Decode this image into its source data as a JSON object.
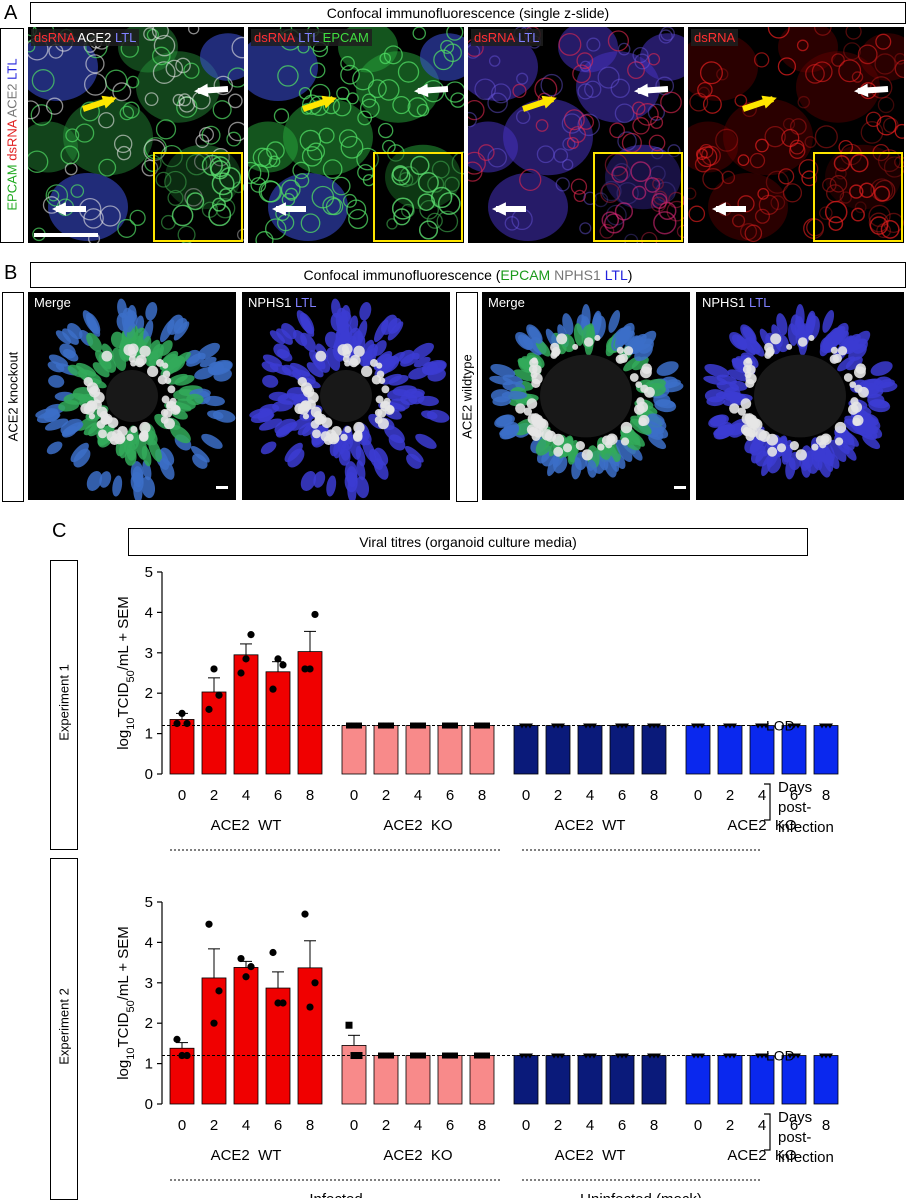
{
  "panel_a": {
    "letter": "A",
    "title": "Confocal immunofluorescence (single z-slide)",
    "side_label": [
      {
        "text": "EPCAM",
        "color": "#22aa22"
      },
      {
        "text": " dsRNA",
        "color": "#e02020"
      },
      {
        "text": " ACE2",
        "color": "#777777"
      },
      {
        "text": " LTL",
        "color": "#2222dd"
      }
    ],
    "tiles": [
      {
        "labels": [
          {
            "text": "dsRNA",
            "color": "#ff3030"
          },
          {
            "text": " ACE2",
            "color": "#ffffff"
          },
          {
            "text": " LTL",
            "color": "#8080ff"
          }
        ]
      },
      {
        "labels": [
          {
            "text": "dsRNA",
            "color": "#ff3030"
          },
          {
            "text": " LTL",
            "color": "#8080ff"
          },
          {
            "text": " EPCAM",
            "color": "#40dd40"
          }
        ]
      },
      {
        "labels": [
          {
            "text": "dsRNA",
            "color": "#ff3030"
          },
          {
            "text": " LTL",
            "color": "#8080ff"
          }
        ]
      },
      {
        "labels": [
          {
            "text": "dsRNA",
            "color": "#ff3030"
          }
        ]
      }
    ]
  },
  "panel_b": {
    "letter": "B",
    "title_parts": [
      {
        "text": "Confocal immunofluorescence (",
        "color": "#000000"
      },
      {
        "text": "EPCAM",
        "color": "#1a9a1a"
      },
      {
        "text": " NPHS1 ",
        "color": "#777777"
      },
      {
        "text": "LTL",
        "color": "#2222dd"
      },
      {
        "text": ")",
        "color": "#000000"
      }
    ],
    "groups": [
      {
        "side_label": "ACE2 knockout",
        "merge_label": "Merge",
        "npl": "NPHS1",
        "ltl": "LTL"
      },
      {
        "side_label": "ACE2 wildtype",
        "merge_label": "Merge",
        "npl": "NPHS1",
        "ltl": "LTL"
      }
    ]
  },
  "panel_c": {
    "letter": "C",
    "title": "Viral titres (organoid culture media)"
  },
  "chart_data": [
    {
      "type": "bar",
      "side_label": "Experiment 1",
      "ylabel": "log10TCID50/mL + SEM",
      "ylim": [
        0,
        5
      ],
      "yticks": [
        0,
        1,
        2,
        3,
        4,
        5
      ],
      "lod": 1.2,
      "lod_label": "LOD",
      "day_ticks": [
        "0",
        "2",
        "4",
        "6",
        "8"
      ],
      "xlabel_right": [
        "Days",
        "post-",
        "infection"
      ],
      "groups": [
        {
          "name": "ACE2  WT",
          "condition": "Infected",
          "color": "#f00000",
          "values": [
            1.35,
            2.03,
            2.95,
            2.53,
            3.03
          ],
          "sem": [
            0.15,
            0.35,
            0.27,
            0.25,
            0.5
          ],
          "points": [
            [
              1.25,
              1.5,
              1.25
            ],
            [
              1.6,
              2.6,
              1.95
            ],
            [
              2.5,
              2.85,
              3.45
            ],
            [
              2.1,
              2.85,
              2.7
            ],
            [
              2.6,
              2.6,
              3.95
            ]
          ]
        },
        {
          "name": "ACE2  KO",
          "condition": "Infected",
          "color": "#f88a8a",
          "values": [
            1.2,
            1.2,
            1.2,
            1.2,
            1.2
          ],
          "sem": [
            0,
            0,
            0,
            0,
            0
          ],
          "points": [],
          "marker": "square"
        },
        {
          "name": "ACE2  WT",
          "condition": "Uninfected (mock)",
          "color": "#0a1a7a",
          "values": [
            1.2,
            1.2,
            1.2,
            1.2,
            1.2
          ],
          "sem": [
            0,
            0,
            0,
            0,
            0
          ],
          "points": []
        },
        {
          "name": "ACE2  KO",
          "condition": "Uninfected (mock)",
          "color": "#0a28ee",
          "values": [
            1.2,
            1.2,
            1.2,
            1.2,
            1.2
          ],
          "sem": [
            0,
            0,
            0,
            0,
            0
          ],
          "points": []
        }
      ],
      "conditions": [
        "Infected",
        "Uninfected (mock)"
      ]
    },
    {
      "type": "bar",
      "side_label": "Experiment 2",
      "ylabel": "log10TCID50/mL + SEM",
      "ylim": [
        0,
        5
      ],
      "yticks": [
        0,
        1,
        2,
        3,
        4,
        5
      ],
      "lod": 1.2,
      "lod_label": "LOD",
      "day_ticks": [
        "0",
        "2",
        "4",
        "6",
        "8"
      ],
      "xlabel_right": [
        "Days",
        "post-",
        "infection"
      ],
      "groups": [
        {
          "name": "ACE2  WT",
          "condition": "Infected",
          "color": "#f00000",
          "values": [
            1.38,
            3.12,
            3.38,
            2.87,
            3.37
          ],
          "sem": [
            0.14,
            0.72,
            0.15,
            0.4,
            0.67
          ],
          "points": [
            [
              1.6,
              1.2,
              1.2
            ],
            [
              4.45,
              2.0,
              2.8
            ],
            [
              3.6,
              3.15,
              3.4
            ],
            [
              3.75,
              2.5,
              2.5
            ],
            [
              4.7,
              2.4,
              3.0
            ]
          ]
        },
        {
          "name": "ACE2  KO",
          "condition": "Infected",
          "color": "#f88a8a",
          "values": [
            1.45,
            1.2,
            1.2,
            1.2,
            1.2
          ],
          "sem": [
            0.25,
            0,
            0,
            0,
            0
          ],
          "points": [
            [
              1.95,
              1.2,
              1.2
            ]
          ],
          "marker": "square"
        },
        {
          "name": "ACE2  WT",
          "condition": "Uninfected (mock)",
          "color": "#0a1a7a",
          "values": [
            1.2,
            1.2,
            1.2,
            1.2,
            1.2
          ],
          "sem": [
            0,
            0,
            0,
            0,
            0
          ],
          "points": []
        },
        {
          "name": "ACE2  KO",
          "condition": "Uninfected (mock)",
          "color": "#0a28ee",
          "values": [
            1.2,
            1.2,
            1.2,
            1.2,
            1.2
          ],
          "sem": [
            0,
            0,
            0,
            0,
            0
          ],
          "points": []
        }
      ],
      "conditions": [
        "Infected",
        "Uninfected (mock)"
      ]
    }
  ]
}
